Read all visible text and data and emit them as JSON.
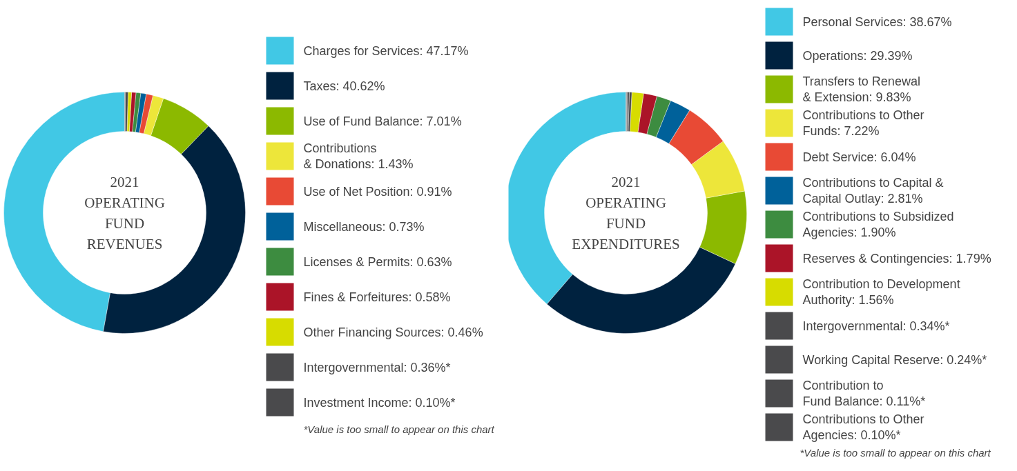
{
  "chart_data": [
    {
      "type": "donut",
      "title": "2021 OPERATING FUND REVENUES",
      "legend": "right",
      "categories": [
        "Charges for Services",
        "Taxes",
        "Use of Fund Balance",
        "Contributions\n& Donations",
        "Use of Net Position",
        "Miscellaneous",
        "Licenses & Permits",
        "Fines & Forfeitures",
        "Other Financing Sources",
        "Intergovernmental",
        "Investment Income"
      ],
      "values": [
        47.17,
        40.62,
        7.01,
        1.43,
        0.91,
        0.73,
        0.63,
        0.58,
        0.46,
        0.36,
        0.1
      ],
      "value_labels": [
        "47.17%",
        "40.62%",
        "7.01%",
        "1.43%",
        "0.91%",
        "0.73%",
        "0.63%",
        "0.58%",
        "0.46%",
        "0.36%*",
        "0.10%*"
      ],
      "colors": [
        "#41c8e5",
        "#00223f",
        "#8cb900",
        "#ede63a",
        "#e84a35",
        "#00619a",
        "#3d8c40",
        "#ab1428",
        "#d7dc00",
        "#4a4a4c",
        "#4a4a4c"
      ],
      "annotations": [
        "*Value is too small to appear on this chart"
      ]
    },
    {
      "type": "donut",
      "title": "2021 OPERATING FUND EXPENDITURES",
      "legend": "right",
      "categories": [
        "Personal Services",
        "Operations",
        "Transfers to Renewal\n& Extension",
        "Contributions to Other\nFunds",
        "Debt Service",
        "Contributions to Capital &\nCapital Outlay",
        "Contributions to Subsidized\nAgencies",
        "Reserves & Contingencies",
        "Contribution to Development\nAuthority",
        "Intergovernmental",
        "Working Capital Reserve",
        "Contribution to\nFund Balance",
        "Contributions to Other\nAgencies"
      ],
      "values": [
        38.67,
        29.39,
        9.83,
        7.22,
        6.04,
        2.81,
        1.9,
        1.79,
        1.56,
        0.34,
        0.24,
        0.11,
        0.1
      ],
      "value_labels": [
        "38.67%",
        "29.39%",
        "9.83%",
        "7.22%",
        "6.04%",
        "2.81%",
        "1.90%",
        "1.79%",
        "1.56%",
        "0.34%*",
        "0.24%*",
        "0.11%*",
        "0.10%*"
      ],
      "colors": [
        "#41c8e5",
        "#00223f",
        "#8cb900",
        "#ede63a",
        "#e84a35",
        "#00619a",
        "#3d8c40",
        "#ab1428",
        "#d7dc00",
        "#4a4a4c",
        "#4a4a4c",
        "#4a4a4c",
        "#4a4a4c"
      ],
      "annotations": [
        "*Value is too small to appear on this chart"
      ]
    }
  ]
}
